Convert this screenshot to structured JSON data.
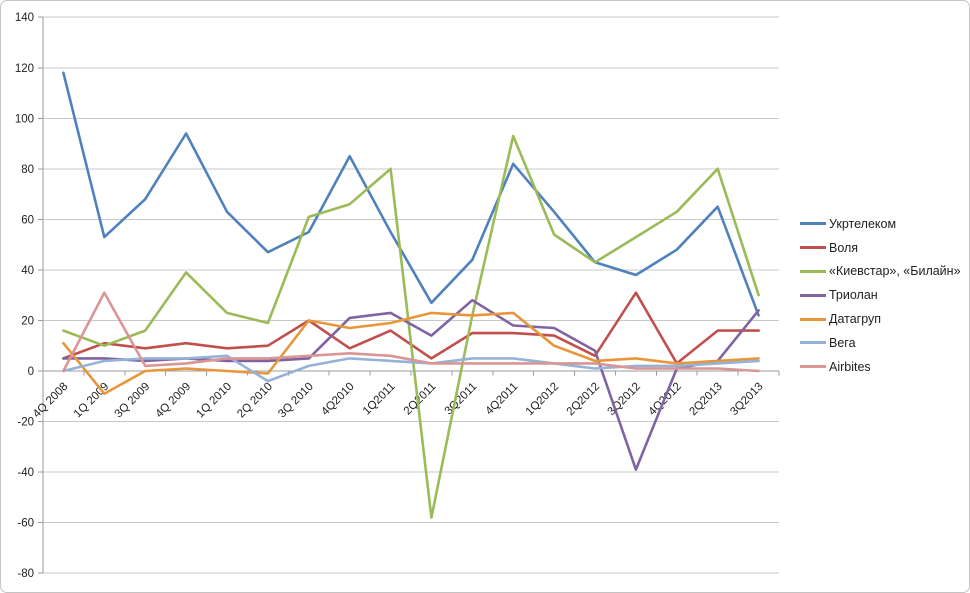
{
  "chart_data": {
    "type": "line",
    "title": "",
    "xlabel": "",
    "ylabel": "",
    "categories": [
      "4Q 2008",
      "1Q 2009",
      "3Q 2009",
      "4Q 2009",
      "1Q 2010",
      "2Q 2010",
      "3Q 2010",
      "4Q2010",
      "1Q2011",
      "2Q2011",
      "3Q2011",
      "4Q2011",
      "1Q2012",
      "2Q2012",
      "3Q2012",
      "4Q2012",
      "2Q2013",
      "3Q2013"
    ],
    "series": [
      {
        "name": "Укртелеком",
        "color": "#4F81BD",
        "values": [
          118,
          53,
          68,
          94,
          63,
          47,
          55,
          85,
          55,
          27,
          44,
          82,
          63,
          43,
          38,
          48,
          65,
          22
        ]
      },
      {
        "name": "Воля",
        "color": "#C0504D",
        "values": [
          5,
          11,
          9,
          11,
          9,
          10,
          20,
          9,
          16,
          5,
          15,
          15,
          14,
          6,
          31,
          3,
          16,
          16
        ]
      },
      {
        "name": "«Киевстар», «Билайн»",
        "color": "#9BBB59",
        "values": [
          16,
          10,
          16,
          39,
          23,
          19,
          61,
          66,
          80,
          -58,
          22,
          93,
          54,
          43,
          53,
          63,
          80,
          30
        ]
      },
      {
        "name": "Триолан",
        "color": "#8064A2",
        "values": [
          5,
          5,
          4,
          5,
          4,
          4,
          5,
          21,
          23,
          14,
          28,
          18,
          17,
          8,
          -39,
          1,
          4,
          24
        ]
      },
      {
        "name": "Датагруп",
        "color": "#E8963A",
        "values": [
          11,
          -9,
          0,
          1,
          0,
          -1,
          20,
          17,
          19,
          23,
          22,
          23,
          10,
          4,
          5,
          3,
          4,
          5
        ]
      },
      {
        "name": "Вега",
        "color": "#95B3D7",
        "values": [
          0,
          4,
          5,
          5,
          6,
          -4,
          2,
          5,
          4,
          3,
          5,
          5,
          3,
          1,
          2,
          2,
          3,
          4
        ]
      },
      {
        "name": "Airbites",
        "color": "#D99694",
        "values": [
          0,
          31,
          2,
          3,
          5,
          5,
          6,
          7,
          6,
          3,
          3,
          3,
          3,
          3,
          1,
          1,
          1,
          0
        ]
      }
    ],
    "ylim": [
      -80,
      140
    ],
    "ytick_step": 20,
    "ytick_labels": [
      "-80",
      "-60",
      "-40",
      "-20",
      "0",
      "20",
      "40",
      "60",
      "80",
      "100",
      "120",
      "140"
    ],
    "grid": true,
    "legend_position": "right",
    "colors": {
      "gridline": "#C8C8C8",
      "axis": "#9B9B9B",
      "text": "#1F1F1F",
      "background": "#FFFFFF",
      "frame_border": "#C3C3C3"
    }
  }
}
